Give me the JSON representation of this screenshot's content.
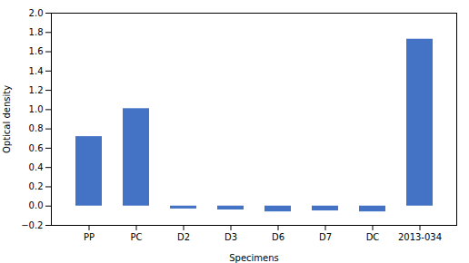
{
  "chart_data": {
    "type": "bar",
    "categories": [
      "PP",
      "PC",
      "D2",
      "D3",
      "D6",
      "D7",
      "DC",
      "2013-034"
    ],
    "values": [
      0.72,
      1.01,
      -0.03,
      -0.04,
      -0.06,
      -0.05,
      -0.06,
      1.73
    ],
    "color": "#4472c4",
    "xlabel": "Specimens",
    "ylabel": "Optical density",
    "ylim": [
      -0.2,
      2.0
    ],
    "yticks": [
      {
        "value": -0.2,
        "label": "−0.2"
      },
      {
        "value": 0,
        "label": "0.0"
      },
      0.2,
      0.4,
      0.6,
      0.8,
      {
        "value": 1.0,
        "label": "1.0"
      },
      1.2,
      1.4,
      1.6,
      1.8,
      {
        "value": 2.0,
        "label": "2.0"
      }
    ]
  }
}
